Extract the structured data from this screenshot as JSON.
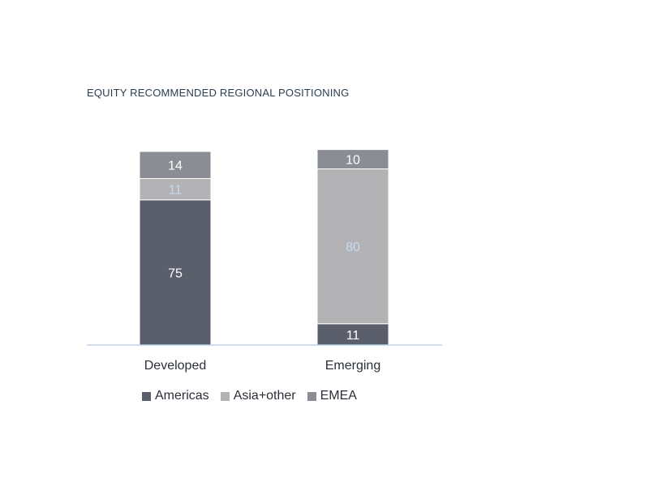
{
  "chart_data": {
    "type": "bar",
    "stacked": true,
    "title": "EQUITY RECOMMENDED REGIONAL POSITIONING",
    "categories": [
      "Developed",
      "Emerging"
    ],
    "series": [
      {
        "name": "Americas",
        "values": [
          75,
          11
        ],
        "color": "#5b5f6b",
        "label_color": "#ffffff"
      },
      {
        "name": "Asia+other",
        "values": [
          11,
          80
        ],
        "color": "#b3b3b6",
        "label_color": "#c8d9ee"
      },
      {
        "name": "EMEA",
        "values": [
          14,
          10
        ],
        "color": "#8b8d94",
        "label_color": "#ffffff"
      }
    ],
    "ylim": [
      0,
      100
    ],
    "grid": false,
    "legend_position": "bottom",
    "baseline_color": "#bcd6ee"
  }
}
